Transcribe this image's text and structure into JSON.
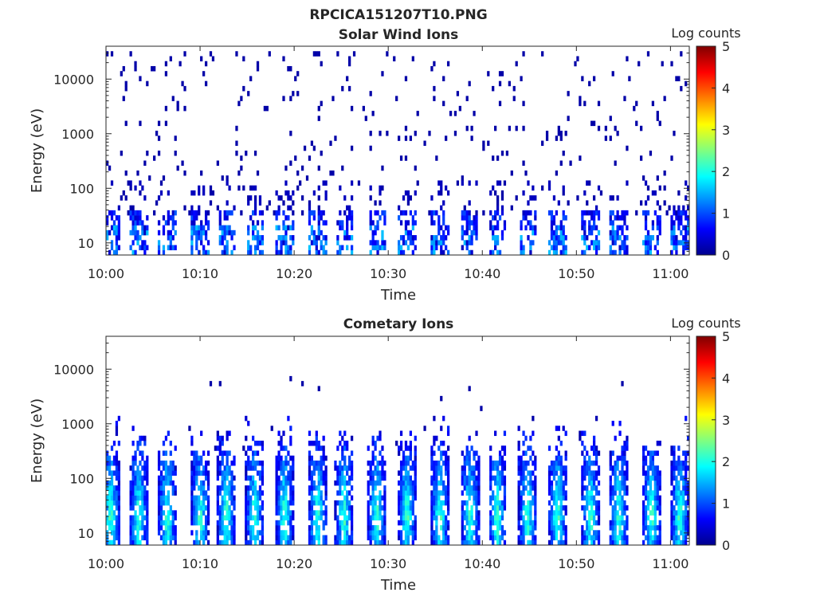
{
  "title": "RPCICA151207T10.PNG",
  "chart_data": [
    {
      "type": "heatmap",
      "title": "Solar Wind Ions",
      "xlabel": "Time",
      "ylabel": "Energy (eV)",
      "x_tick_labels": [
        "10:00",
        "10:10",
        "10:20",
        "10:30",
        "10:40",
        "10:50",
        "11:00"
      ],
      "xlim_minutes": [
        0,
        62
      ],
      "y_tick_values": [
        10,
        100,
        1000,
        10000
      ],
      "y_tick_labels": [
        "10",
        "100",
        "1000",
        "10000"
      ],
      "y_scale": "log",
      "ylim": [
        6,
        40000
      ],
      "colorbar": {
        "label": "Log counts",
        "ticks": [
          0,
          1,
          2,
          3,
          4,
          5
        ],
        "tick_labels": [
          "0",
          "1",
          "2",
          "3",
          "4",
          "5"
        ],
        "range": [
          0,
          5
        ],
        "colormap": "jet"
      },
      "pattern": {
        "bursts_at_minutes": [
          0.5,
          3.5,
          6.5,
          10.0,
          12.8,
          15.8,
          19.0,
          22.5,
          25.3,
          28.8,
          32.0,
          35.5,
          38.7,
          41.6,
          44.8,
          48.0,
          51.5,
          54.5,
          58.0,
          61.0
        ],
        "burst_energy_range_eV": [
          6,
          40
        ],
        "burst_log_counts_range": [
          0.3,
          1.6
        ],
        "scatter_energy_range_eV": [
          30,
          30000
        ],
        "scatter_log_counts": 0.2
      }
    },
    {
      "type": "heatmap",
      "title": "Cometary Ions",
      "xlabel": "Time",
      "ylabel": "Energy (eV)",
      "x_tick_labels": [
        "10:00",
        "10:10",
        "10:20",
        "10:30",
        "10:40",
        "10:50",
        "11:00"
      ],
      "xlim_minutes": [
        0,
        62
      ],
      "y_tick_values": [
        10,
        100,
        1000,
        10000
      ],
      "y_tick_labels": [
        "10",
        "100",
        "1000",
        "10000"
      ],
      "y_scale": "log",
      "ylim": [
        6,
        40000
      ],
      "colorbar": {
        "label": "Log counts",
        "ticks": [
          0,
          1,
          2,
          3,
          4,
          5
        ],
        "tick_labels": [
          "0",
          "1",
          "2",
          "3",
          "4",
          "5"
        ],
        "range": [
          0,
          5
        ],
        "colormap": "jet"
      },
      "pattern": {
        "bursts_at_minutes": [
          0.5,
          3.5,
          6.5,
          10.0,
          12.8,
          15.8,
          19.0,
          22.5,
          25.3,
          28.8,
          32.0,
          35.5,
          38.7,
          41.6,
          44.8,
          48.0,
          51.5,
          54.5,
          58.0,
          61.0
        ],
        "burst_energy_range_eV": [
          6,
          1500
        ],
        "burst_log_counts_range": [
          0.2,
          2.6
        ],
        "peak_energy_eV": 20,
        "scatter_energy_range_eV": [
          300,
          8000
        ],
        "scatter_log_counts": 0.2
      }
    }
  ]
}
